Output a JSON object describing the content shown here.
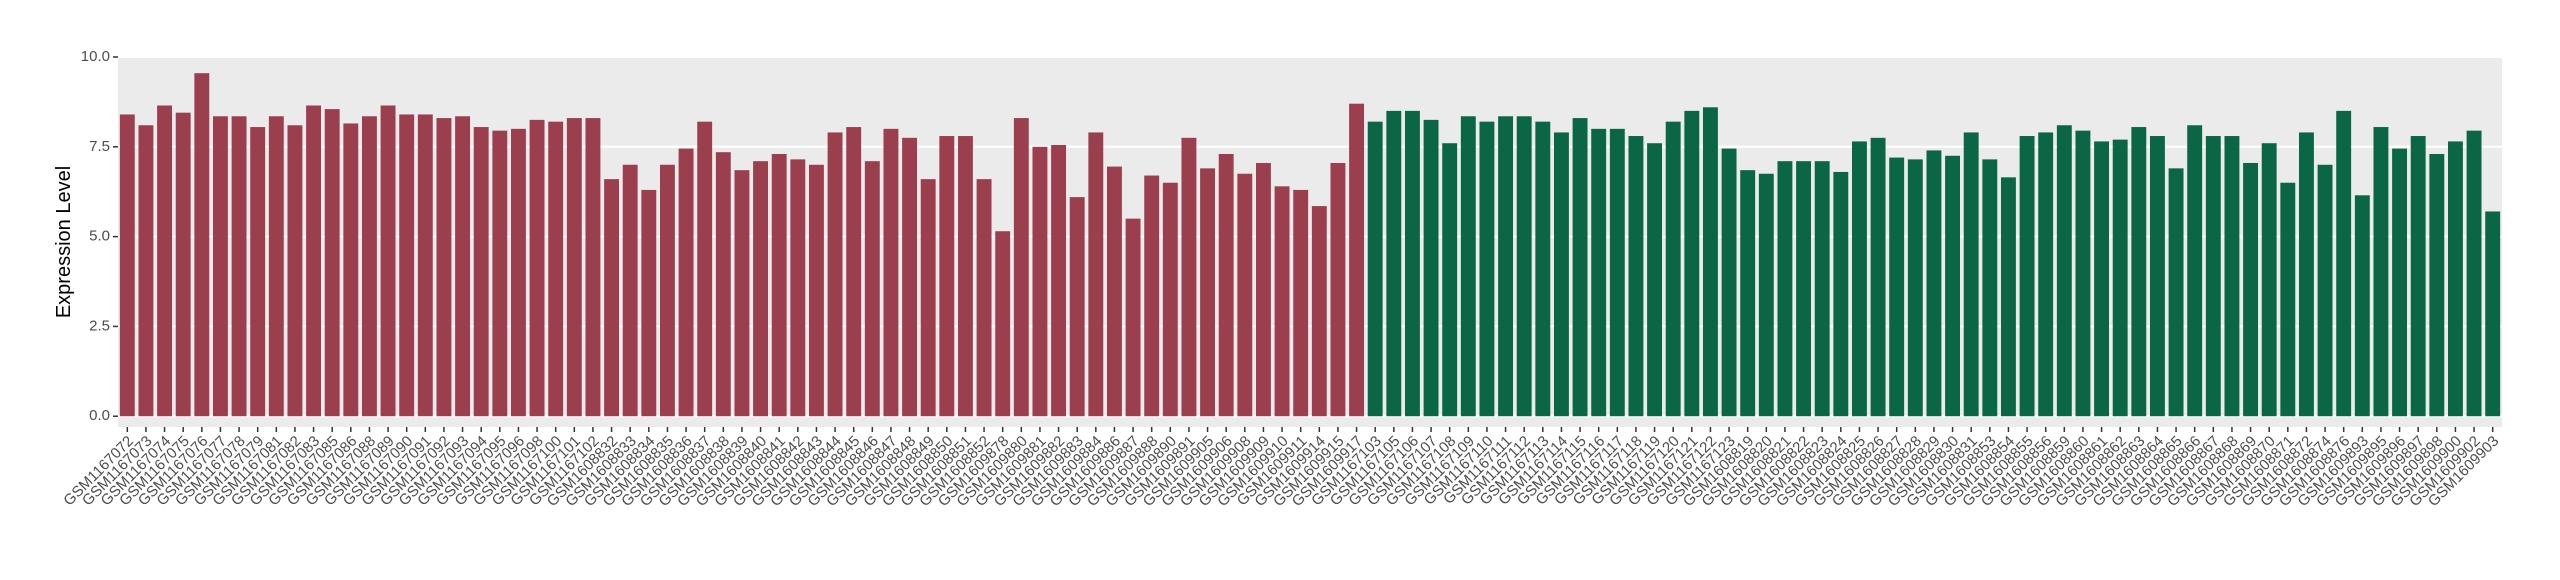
{
  "chart_data": {
    "type": "bar",
    "ylabel": "Expression Level",
    "categories": [
      "GSM1167072",
      "GSM1167073",
      "GSM1167074",
      "GSM1167075",
      "GSM1167076",
      "GSM1167077",
      "GSM1167078",
      "GSM1167079",
      "GSM1167081",
      "GSM1167082",
      "GSM1167083",
      "GSM1167085",
      "GSM1167086",
      "GSM1167088",
      "GSM1167089",
      "GSM1167090",
      "GSM1167091",
      "GSM1167092",
      "GSM1167093",
      "GSM1167094",
      "GSM1167095",
      "GSM1167096",
      "GSM1167098",
      "GSM1167100",
      "GSM1167101",
      "GSM1167102",
      "GSM1608832",
      "GSM1608833",
      "GSM1608834",
      "GSM1608835",
      "GSM1608836",
      "GSM1608837",
      "GSM1608838",
      "GSM1608839",
      "GSM1608840",
      "GSM1608841",
      "GSM1608842",
      "GSM1608843",
      "GSM1608844",
      "GSM1608845",
      "GSM1608846",
      "GSM1608847",
      "GSM1608848",
      "GSM1608849",
      "GSM1608850",
      "GSM1608851",
      "GSM1608852",
      "GSM1609878",
      "GSM1609880",
      "GSM1609881",
      "GSM1609882",
      "GSM1609883",
      "GSM1609884",
      "GSM1609886",
      "GSM1609887",
      "GSM1609888",
      "GSM1609890",
      "GSM1609891",
      "GSM1609905",
      "GSM1609906",
      "GSM1609908",
      "GSM1609909",
      "GSM1609910",
      "GSM1609911",
      "GSM1609914",
      "GSM1609915",
      "GSM1609917",
      "GSM1167103",
      "GSM1167105",
      "GSM1167106",
      "GSM1167107",
      "GSM1167108",
      "GSM1167109",
      "GSM1167110",
      "GSM1167111",
      "GSM1167112",
      "GSM1167113",
      "GSM1167114",
      "GSM1167115",
      "GSM1167116",
      "GSM1167117",
      "GSM1167118",
      "GSM1167119",
      "GSM1167120",
      "GSM1167121",
      "GSM1167122",
      "GSM1167123",
      "GSM1608819",
      "GSM1608820",
      "GSM1608821",
      "GSM1608822",
      "GSM1608823",
      "GSM1608824",
      "GSM1608825",
      "GSM1608826",
      "GSM1608827",
      "GSM1608828",
      "GSM1608829",
      "GSM1608830",
      "GSM1608831",
      "GSM1608853",
      "GSM1608854",
      "GSM1608855",
      "GSM1608856",
      "GSM1608859",
      "GSM1608860",
      "GSM1608861",
      "GSM1608862",
      "GSM1608863",
      "GSM1608864",
      "GSM1608865",
      "GSM1608866",
      "GSM1608867",
      "GSM1608868",
      "GSM1608869",
      "GSM1608870",
      "GSM1608871",
      "GSM1608872",
      "GSM1608874",
      "GSM1608876",
      "GSM1609893",
      "GSM1609895",
      "GSM1609896",
      "GSM1609897",
      "GSM1609898",
      "GSM1609900",
      "GSM1609902",
      "GSM1609903"
    ],
    "series": [
      {
        "color": "#9b3f4e",
        "values": [
          8.4,
          8.1,
          8.65,
          8.45,
          9.55,
          8.35,
          8.35,
          8.05,
          8.35,
          8.1,
          8.65,
          8.55,
          8.15,
          8.35,
          8.65,
          8.4,
          8.4,
          8.3,
          8.35,
          8.05,
          7.95,
          8.0,
          8.25,
          8.2,
          8.3,
          8.3,
          6.6,
          7.0,
          6.3,
          7.0,
          7.45,
          8.2,
          7.35,
          6.85,
          7.1,
          7.3,
          7.15,
          7.0,
          7.9,
          8.05,
          7.1,
          8.0,
          7.75,
          6.6,
          7.8,
          7.8,
          6.6,
          5.15,
          8.3,
          7.5,
          7.55,
          6.1,
          7.9,
          6.95,
          5.5,
          6.7,
          6.5,
          7.75,
          6.9,
          7.3,
          6.75,
          7.05,
          6.4,
          6.3,
          5.85,
          7.05,
          8.7,
          null,
          null,
          null,
          null,
          null,
          null,
          null,
          null,
          null,
          null,
          null,
          null,
          null,
          null,
          null,
          null,
          null,
          null,
          null,
          null,
          null,
          null,
          null,
          null,
          null,
          null,
          null,
          null,
          null,
          null,
          null,
          null,
          null,
          null,
          null,
          null,
          null,
          null,
          null,
          null,
          null,
          null,
          null,
          null,
          null,
          null,
          null,
          null,
          null,
          null,
          null,
          null,
          null,
          null,
          null,
          null,
          null,
          null,
          null,
          null,
          null
        ]
      },
      {
        "color": "#0a6644",
        "values": [
          null,
          null,
          null,
          null,
          null,
          null,
          null,
          null,
          null,
          null,
          null,
          null,
          null,
          null,
          null,
          null,
          null,
          null,
          null,
          null,
          null,
          null,
          null,
          null,
          null,
          null,
          null,
          null,
          null,
          null,
          null,
          null,
          null,
          null,
          null,
          null,
          null,
          null,
          null,
          null,
          null,
          null,
          null,
          null,
          null,
          null,
          null,
          null,
          null,
          null,
          null,
          null,
          null,
          null,
          null,
          null,
          null,
          null,
          null,
          null,
          null,
          null,
          null,
          null,
          null,
          null,
          null,
          8.2,
          8.5,
          8.5,
          8.25,
          7.6,
          8.35,
          8.2,
          8.35,
          8.35,
          8.2,
          7.9,
          8.3,
          8.0,
          8.0,
          7.8,
          7.6,
          8.2,
          8.5,
          8.6,
          7.45,
          6.85,
          6.75,
          7.1,
          7.1,
          7.1,
          6.8,
          7.65,
          7.75,
          7.2,
          7.15,
          7.4,
          7.25,
          7.9,
          7.15,
          6.65,
          7.8,
          7.9,
          8.1,
          7.95,
          7.65,
          7.7,
          8.05,
          7.8,
          6.9,
          8.1,
          7.8,
          7.8,
          7.05,
          7.6,
          6.5,
          7.9,
          7.0,
          8.5,
          6.15,
          8.05,
          7.45,
          7.8,
          7.3,
          7.65,
          7.95,
          5.7
        ]
      }
    ],
    "ylim": [
      -0.3,
      10
    ],
    "yticks": [
      {
        "value": 0,
        "label": "0.0"
      },
      {
        "value": 2.5,
        "label": "2.5"
      },
      {
        "value": 5,
        "label": "5.0"
      },
      {
        "value": 7.5,
        "label": "7.5"
      },
      {
        "value": 10,
        "label": "10.0"
      }
    ],
    "grid": true,
    "background": "#ebebeb"
  }
}
